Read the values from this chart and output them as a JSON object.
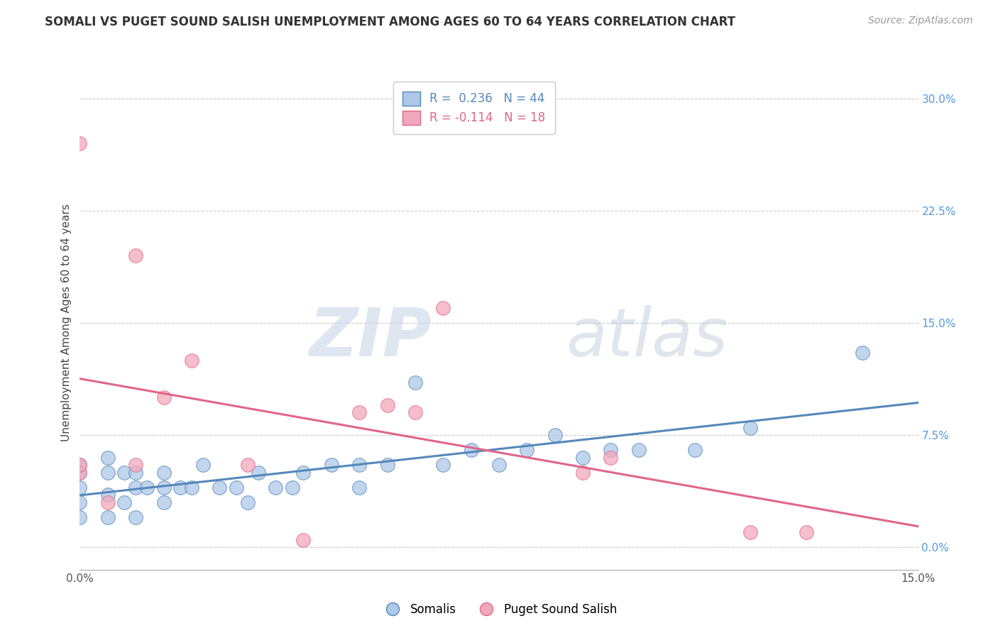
{
  "title": "SOMALI VS PUGET SOUND SALISH UNEMPLOYMENT AMONG AGES 60 TO 64 YEARS CORRELATION CHART",
  "source": "Source: ZipAtlas.com",
  "ylabel": "Unemployment Among Ages 60 to 64 years",
  "xlim": [
    0.0,
    0.15
  ],
  "ylim": [
    -0.015,
    0.315
  ],
  "yticks": [
    0.0,
    0.075,
    0.15,
    0.225,
    0.3
  ],
  "ytick_labels": [
    "0.0%",
    "7.5%",
    "15.0%",
    "22.5%",
    "30.0%"
  ],
  "xticks": [
    0.0,
    0.15
  ],
  "xtick_labels": [
    "0.0%",
    "15.0%"
  ],
  "somali_r": 0.236,
  "somali_n": 44,
  "puget_r": -0.114,
  "puget_n": 18,
  "somali_color": "#adc8e8",
  "puget_color": "#f2a8bc",
  "somali_line_color": "#5588bb",
  "puget_line_color": "#e06688",
  "background_color": "#ffffff",
  "grid_color": "#cccccc",
  "somali_x": [
    0.0,
    0.0,
    0.0,
    0.0,
    0.0,
    0.005,
    0.005,
    0.005,
    0.005,
    0.008,
    0.008,
    0.01,
    0.01,
    0.01,
    0.012,
    0.015,
    0.015,
    0.015,
    0.018,
    0.02,
    0.022,
    0.025,
    0.028,
    0.03,
    0.032,
    0.035,
    0.038,
    0.04,
    0.045,
    0.05,
    0.05,
    0.055,
    0.06,
    0.065,
    0.07,
    0.075,
    0.08,
    0.085,
    0.09,
    0.095,
    0.1,
    0.11,
    0.12,
    0.14
  ],
  "somali_y": [
    0.02,
    0.03,
    0.04,
    0.05,
    0.055,
    0.02,
    0.035,
    0.05,
    0.06,
    0.03,
    0.05,
    0.02,
    0.04,
    0.05,
    0.04,
    0.03,
    0.04,
    0.05,
    0.04,
    0.04,
    0.055,
    0.04,
    0.04,
    0.03,
    0.05,
    0.04,
    0.04,
    0.05,
    0.055,
    0.055,
    0.04,
    0.055,
    0.11,
    0.055,
    0.065,
    0.055,
    0.065,
    0.075,
    0.06,
    0.065,
    0.065,
    0.065,
    0.08,
    0.13
  ],
  "puget_x": [
    0.0,
    0.0,
    0.0,
    0.005,
    0.01,
    0.01,
    0.015,
    0.02,
    0.03,
    0.04,
    0.05,
    0.055,
    0.06,
    0.065,
    0.09,
    0.095,
    0.12,
    0.13
  ],
  "puget_y": [
    0.05,
    0.055,
    0.27,
    0.03,
    0.055,
    0.195,
    0.1,
    0.125,
    0.055,
    0.005,
    0.09,
    0.095,
    0.09,
    0.16,
    0.05,
    0.06,
    0.01,
    0.01
  ],
  "watermark_zip": "ZIP",
  "watermark_atlas": "atlas",
  "title_fontsize": 12,
  "axis_label_fontsize": 11,
  "tick_fontsize": 11,
  "legend_fontsize": 12
}
